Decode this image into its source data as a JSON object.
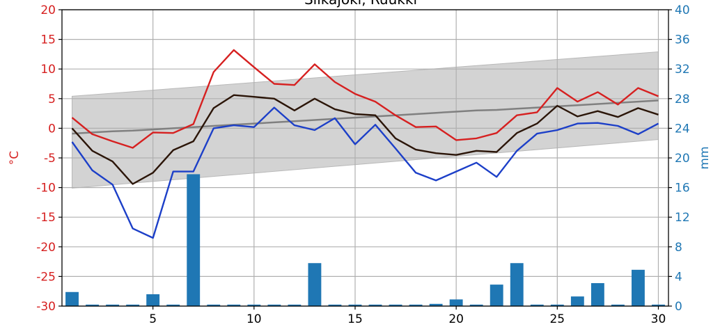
{
  "chart_data": {
    "type": "line",
    "title": "Siikajoki, Ruukki",
    "ylabel_left": "°C",
    "ylabel_right": "mm",
    "xlim": [
      0.5,
      30.5
    ],
    "ylim_left": [
      -30,
      20
    ],
    "ylim_right": [
      0,
      40
    ],
    "xticks": [
      5,
      10,
      15,
      20,
      25,
      30
    ],
    "yticks_left": [
      -30,
      -25,
      -20,
      -15,
      -10,
      -5,
      0,
      5,
      10,
      15,
      20
    ],
    "yticks_right": [
      0,
      4,
      8,
      12,
      16,
      20,
      24,
      28,
      32,
      36,
      40
    ],
    "grid": true,
    "x": [
      1,
      2,
      3,
      4,
      5,
      6,
      7,
      8,
      9,
      10,
      11,
      12,
      13,
      14,
      15,
      16,
      17,
      18,
      19,
      20,
      21,
      22,
      23,
      24,
      25,
      26,
      27,
      28,
      29,
      30
    ],
    "series": [
      {
        "role": "max",
        "color": "#d62020",
        "values": [
          1.8,
          -1.0,
          -2.2,
          -3.3,
          -0.7,
          -0.8,
          0.7,
          9.5,
          13.2,
          10.3,
          7.5,
          7.3,
          10.8,
          7.8,
          5.8,
          4.5,
          2.2,
          0.2,
          0.3,
          -2.0,
          -1.7,
          -0.8,
          2.2,
          2.7,
          6.8,
          4.5,
          6.1,
          4.0,
          6.8,
          5.4
        ]
      },
      {
        "role": "mean",
        "color": "#2b1508",
        "values": [
          0.0,
          -3.8,
          -5.6,
          -9.4,
          -7.5,
          -3.7,
          -2.2,
          3.4,
          5.6,
          5.3,
          5.0,
          3.0,
          5.0,
          3.2,
          2.4,
          2.2,
          -1.7,
          -3.6,
          -4.2,
          -4.5,
          -3.8,
          -4.0,
          -0.8,
          0.8,
          3.8,
          2.0,
          2.9,
          1.9,
          3.4,
          2.3
        ]
      },
      {
        "role": "min",
        "color": "#1c3fc8",
        "values": [
          -2.3,
          -7.1,
          -9.5,
          -16.9,
          -18.5,
          -7.3,
          -7.3,
          0.0,
          0.5,
          0.2,
          3.5,
          0.5,
          -0.3,
          1.7,
          -2.7,
          0.6,
          -3.4,
          -7.5,
          -8.8,
          -7.3,
          -5.8,
          -8.2,
          -3.8,
          -0.9,
          -0.3,
          0.8,
          0.9,
          0.4,
          -1.0,
          0.8
        ]
      },
      {
        "role": "normal-mean",
        "color": "#808080",
        "values": [
          -0.9,
          -0.7,
          -0.5,
          -0.4,
          -0.2,
          0.0,
          0.2,
          0.4,
          0.6,
          0.8,
          1.0,
          1.2,
          1.4,
          1.6,
          1.8,
          2.0,
          2.2,
          2.4,
          2.6,
          2.8,
          3.0,
          3.1,
          3.3,
          3.5,
          3.7,
          3.9,
          4.1,
          4.3,
          4.5,
          4.7
        ]
      }
    ],
    "band": {
      "color": "#d3d3d3",
      "lower_start": -10.1,
      "lower_end": -1.9,
      "upper_start": 5.4,
      "upper_end": 12.9
    },
    "bars": {
      "axis": "right",
      "color": "#1f77b4",
      "values": [
        1.9,
        0.2,
        0.2,
        0.2,
        1.6,
        0.2,
        17.8,
        0.2,
        0.2,
        0.2,
        0.2,
        0.2,
        5.8,
        0.2,
        0.2,
        0.2,
        0.2,
        0.2,
        0.3,
        0.9,
        0.2,
        2.9,
        5.8,
        0.2,
        0.2,
        1.3,
        3.1,
        0.2,
        4.9,
        0.2
      ]
    },
    "left_tick_color": "#d62020",
    "right_tick_color": "#1f77b4"
  }
}
